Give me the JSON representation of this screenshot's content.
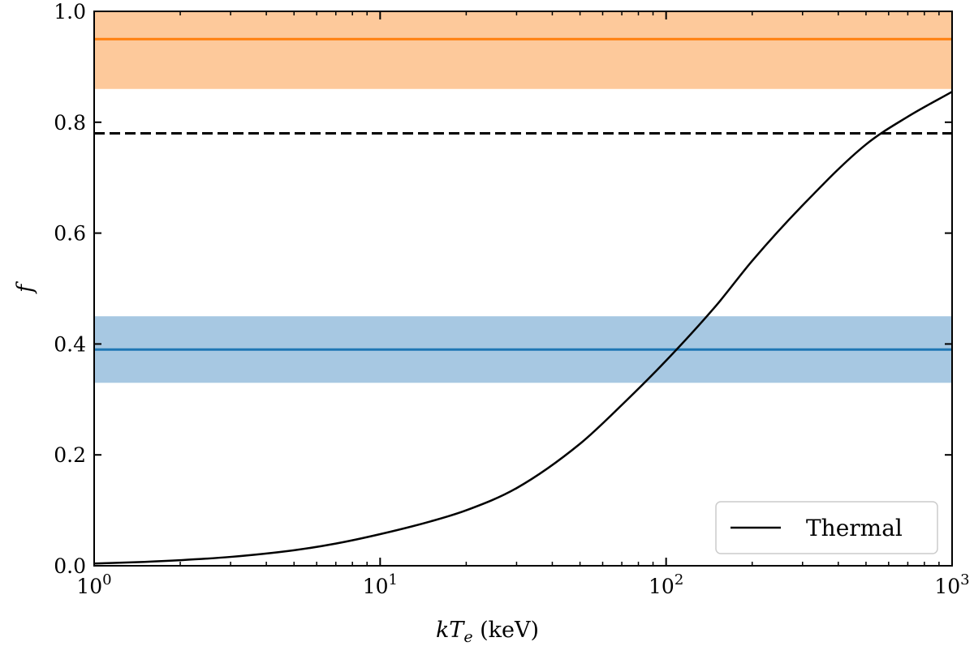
{
  "chart_data": {
    "type": "line",
    "xscale": "log",
    "xlim": [
      1,
      1000
    ],
    "ylim": [
      0.0,
      1.0
    ],
    "xlabel": {
      "italic": "kT",
      "subscript": "e",
      "rest": " (keV)"
    },
    "ylabel": "f",
    "x_ticks": [
      {
        "value": 1,
        "base": "10",
        "exp": "0"
      },
      {
        "value": 10,
        "base": "10",
        "exp": "1"
      },
      {
        "value": 100,
        "base": "10",
        "exp": "2"
      },
      {
        "value": 1000,
        "base": "10",
        "exp": "3"
      }
    ],
    "y_ticks": [
      {
        "value": 0.0,
        "label": "0.0"
      },
      {
        "value": 0.2,
        "label": "0.2"
      },
      {
        "value": 0.4,
        "label": "0.4"
      },
      {
        "value": 0.6,
        "label": "0.6"
      },
      {
        "value": 0.8,
        "label": "0.8"
      },
      {
        "value": 1.0,
        "label": "1.0"
      }
    ],
    "grid": false,
    "legend_position": "lower-right",
    "bands": [
      {
        "name": "orange-band",
        "y0": 0.86,
        "y1": 1.0,
        "color": "#fdc99b"
      },
      {
        "name": "blue-band",
        "y0": 0.33,
        "y1": 0.45,
        "color": "#a7c8e2"
      }
    ],
    "hlines": [
      {
        "name": "orange-line",
        "y": 0.95,
        "color": "#ff7f0e",
        "dash": false
      },
      {
        "name": "dashed-line",
        "y": 0.78,
        "color": "#000000",
        "dash": true
      },
      {
        "name": "blue-line",
        "y": 0.39,
        "color": "#1f77b4",
        "dash": false
      }
    ],
    "series": [
      {
        "name": "Thermal",
        "color": "#000000",
        "x": [
          1,
          1.5,
          2,
          3,
          5,
          7,
          10,
          15,
          20,
          30,
          50,
          70,
          100,
          150,
          200,
          300,
          500,
          700,
          1000
        ],
        "y": [
          0.004,
          0.007,
          0.01,
          0.016,
          0.028,
          0.04,
          0.057,
          0.08,
          0.1,
          0.14,
          0.22,
          0.29,
          0.37,
          0.47,
          0.55,
          0.65,
          0.76,
          0.81,
          0.855
        ]
      }
    ]
  }
}
